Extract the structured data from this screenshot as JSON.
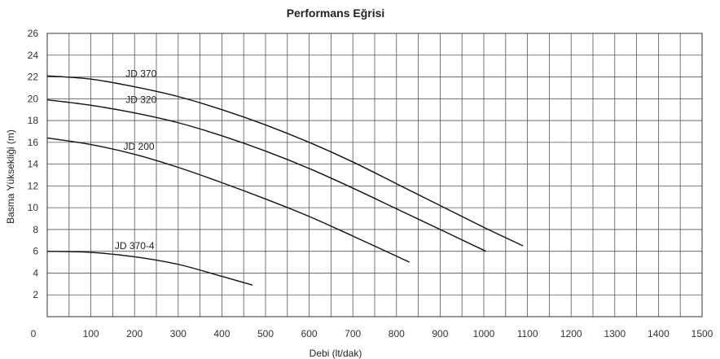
{
  "chart_data": {
    "type": "line",
    "title": "Performans Eğrisi",
    "xlabel": "Debi (lt/dak)",
    "ylabel": "Basma Yüksekliği (m)",
    "xlim": [
      0,
      1500
    ],
    "ylim": [
      0,
      26
    ],
    "x_ticks": [
      "0",
      "100",
      "200",
      "300",
      "400",
      "500",
      "600",
      "700",
      "800",
      "900",
      "1000",
      "1100",
      "1200",
      "1300",
      "1400",
      "1500"
    ],
    "y_ticks": [
      "2",
      "4",
      "6",
      "8",
      "10",
      "12",
      "14",
      "16",
      "18",
      "20",
      "22",
      "24",
      "26"
    ],
    "grid": true,
    "series": [
      {
        "name": "JD 370",
        "x": [
          0,
          100,
          200,
          300,
          400,
          500,
          600,
          700,
          800,
          900,
          1000,
          1090
        ],
        "y": [
          22.1,
          21.8,
          21.1,
          20.2,
          19.0,
          17.6,
          16.0,
          14.2,
          12.2,
          10.2,
          8.2,
          6.5
        ]
      },
      {
        "name": "JD 320",
        "x": [
          0,
          100,
          200,
          300,
          400,
          500,
          600,
          700,
          800,
          900,
          1005
        ],
        "y": [
          19.9,
          19.4,
          18.7,
          17.8,
          16.6,
          15.2,
          13.6,
          11.8,
          9.9,
          8.0,
          6.0
        ]
      },
      {
        "name": "JD 200",
        "x": [
          0,
          100,
          200,
          300,
          400,
          500,
          600,
          700,
          830
        ],
        "y": [
          16.4,
          15.8,
          14.9,
          13.7,
          12.3,
          10.8,
          9.2,
          7.4,
          5.0
        ]
      },
      {
        "name": "JD 370-4",
        "x": [
          0,
          100,
          200,
          300,
          400,
          470
        ],
        "y": [
          6.0,
          5.9,
          5.5,
          4.8,
          3.7,
          2.9
        ]
      }
    ],
    "labels": [
      "JD 370",
      "JD 320",
      "JD 200",
      "JD 370-4"
    ]
  }
}
